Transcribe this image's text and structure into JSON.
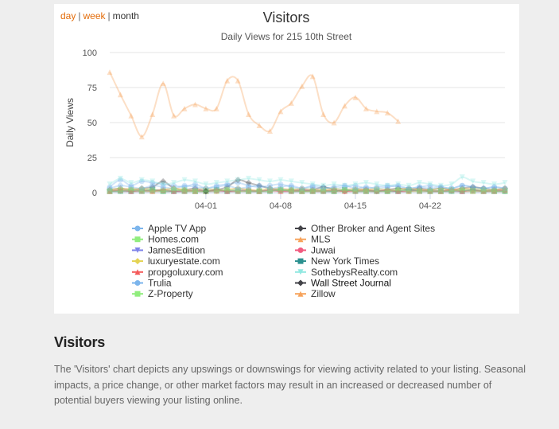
{
  "range_selector": {
    "day": "day",
    "week": "week",
    "month": "month",
    "separator": "|"
  },
  "section": {
    "title": "Visitors",
    "description": "The 'Visitors' chart depicts any upswings or downswings for viewing activity related to your listing. Seasonal impacts, a price change, or other market factors may result in an increased or decreased number of potential buyers viewing your listing online."
  },
  "colors": {
    "accent": "#e36c0a",
    "grid": "#e6e6e6",
    "zillow": "#f7a35c"
  },
  "chart_data": {
    "type": "line",
    "title": "Visitors",
    "subtitle": "Daily Views for 215 10th Street",
    "xlabel": "",
    "ylabel": "Daily Views",
    "ylim": [
      0,
      100
    ],
    "yticks": [
      0,
      25,
      50,
      75,
      100
    ],
    "xlim": [
      0,
      37
    ],
    "xticks": [
      {
        "x": 9,
        "label": "04-01"
      },
      {
        "x": 16,
        "label": "04-08"
      },
      {
        "x": 23,
        "label": "04-15"
      },
      {
        "x": 30,
        "label": "04-22"
      }
    ],
    "series": [
      {
        "name": "Apple TV App",
        "color": "#7cb5ec",
        "marker": "circle",
        "values": [
          4,
          9,
          5,
          8,
          7,
          6,
          5,
          4,
          6,
          3,
          5,
          6,
          7,
          5,
          4,
          5,
          6,
          4,
          3,
          5,
          4,
          3,
          4,
          5,
          3,
          4,
          5,
          4,
          3,
          4,
          5,
          4,
          3,
          5,
          4,
          3,
          4,
          3
        ]
      },
      {
        "name": "Other Broker and Agent Sites",
        "color": "#434348",
        "marker": "diamond",
        "values": [
          2,
          3,
          2,
          3,
          4,
          8,
          3,
          2,
          3,
          1,
          2,
          4,
          9,
          7,
          5,
          3,
          2,
          2,
          2,
          2,
          4,
          2,
          1,
          2,
          2,
          1,
          2,
          3,
          2,
          3,
          2,
          3,
          2,
          3,
          4,
          3,
          2,
          3
        ]
      },
      {
        "name": "Homes.com",
        "color": "#90ed7d",
        "marker": "square",
        "values": [
          1,
          2,
          1,
          2,
          2,
          1,
          1,
          2,
          1,
          1,
          2,
          1,
          2,
          1,
          1,
          2,
          1,
          2,
          1,
          1,
          2,
          1,
          1,
          2,
          1,
          2,
          1,
          1,
          1,
          2,
          1,
          1,
          2,
          1,
          1,
          2,
          1,
          1
        ]
      },
      {
        "name": "MLS",
        "color": "#f7a35c",
        "marker": "triangle",
        "values": [
          1,
          2,
          3,
          2,
          1,
          2,
          3,
          2,
          1,
          2,
          1,
          2,
          3,
          2,
          1,
          2,
          3,
          2,
          1,
          2,
          2,
          1,
          2,
          3,
          2,
          2,
          1,
          2,
          3,
          2,
          2,
          1,
          2,
          3,
          2,
          1,
          2,
          2
        ]
      },
      {
        "name": "JamesEdition",
        "color": "#8085e9",
        "marker": "triangle-down",
        "values": [
          1,
          1,
          2,
          1,
          1,
          2,
          1,
          1,
          2,
          1,
          1,
          1,
          2,
          1,
          1,
          2,
          1,
          1,
          1,
          2,
          1,
          1,
          2,
          1,
          1,
          1,
          2,
          1,
          1,
          2,
          1,
          1,
          1,
          2,
          1,
          1,
          2,
          1
        ]
      },
      {
        "name": "Juwai",
        "color": "#f15c80",
        "marker": "circle",
        "values": [
          1,
          1,
          1,
          2,
          1,
          1,
          1,
          1,
          2,
          1,
          1,
          1,
          1,
          2,
          1,
          1,
          1,
          1,
          2,
          1,
          1,
          1,
          1,
          1,
          2,
          1,
          1,
          1,
          1,
          2,
          1,
          1,
          1,
          1,
          2,
          1,
          1,
          1
        ]
      },
      {
        "name": "luxuryestate.com",
        "color": "#e4d354",
        "marker": "diamond",
        "values": [
          2,
          3,
          2,
          3,
          2,
          2,
          3,
          2,
          2,
          3,
          2,
          2,
          3,
          2,
          2,
          3,
          2,
          2,
          3,
          2,
          2,
          3,
          2,
          2,
          2,
          3,
          2,
          2,
          3,
          2,
          2,
          3,
          2,
          2,
          3,
          2,
          2,
          3
        ]
      },
      {
        "name": "New York Times",
        "color": "#2b908f",
        "marker": "square",
        "values": [
          1,
          1,
          1,
          1,
          2,
          1,
          1,
          1,
          1,
          1,
          2,
          1,
          1,
          1,
          1,
          1,
          2,
          1,
          1,
          1,
          1,
          1,
          2,
          1,
          1,
          1,
          1,
          1,
          2,
          1,
          1,
          1,
          1,
          1,
          2,
          1,
          1,
          1
        ]
      },
      {
        "name": "propgoluxury.com",
        "color": "#f45b5b",
        "marker": "triangle",
        "values": [
          1,
          2,
          1,
          1,
          1,
          2,
          1,
          1,
          1,
          1,
          2,
          1,
          1,
          1,
          1,
          2,
          1,
          1,
          1,
          1,
          1,
          2,
          1,
          1,
          1,
          1,
          2,
          1,
          1,
          1,
          1,
          1,
          2,
          1,
          1,
          1,
          1,
          2
        ]
      },
      {
        "name": "SothebysRealty.com",
        "color": "#91e8e1",
        "marker": "triangle-down",
        "values": [
          6,
          10,
          7,
          9,
          8,
          6,
          7,
          9,
          8,
          6,
          7,
          8,
          9,
          10,
          9,
          8,
          9,
          8,
          7,
          6,
          5,
          6,
          5,
          6,
          7,
          6,
          5,
          6,
          5,
          7,
          6,
          5,
          6,
          11,
          8,
          7,
          6,
          7
        ]
      },
      {
        "name": "Trulia",
        "color": "#7cb5ec",
        "marker": "circle",
        "values": [
          3,
          5,
          4,
          3,
          5,
          4,
          3,
          5,
          4,
          3,
          4,
          5,
          3,
          4,
          5,
          3,
          4,
          5,
          3,
          4,
          3,
          4,
          5,
          3,
          4,
          3,
          4,
          5,
          3,
          4,
          3,
          4,
          3,
          5,
          4,
          3,
          4,
          3
        ]
      },
      {
        "name": "Wall Street Journal",
        "color": "#434348",
        "marker": "diamond",
        "values": [
          null,
          null,
          null,
          null,
          null,
          null,
          null,
          null,
          null,
          1,
          null,
          null,
          null,
          null,
          null,
          null,
          null,
          null,
          null,
          null,
          null,
          null,
          null,
          null,
          null,
          null,
          null,
          null,
          null,
          null,
          null,
          null,
          null,
          null,
          null,
          null,
          null,
          null
        ]
      },
      {
        "name": "Z-Property",
        "color": "#90ed7d",
        "marker": "square",
        "values": [
          1,
          1,
          2,
          1,
          1,
          1,
          2,
          1,
          1,
          1,
          1,
          2,
          1,
          1,
          1,
          1,
          2,
          1,
          1,
          1,
          1,
          1,
          2,
          1,
          1,
          1,
          1,
          2,
          1,
          1,
          1,
          1,
          1,
          2,
          1,
          1,
          1,
          1
        ]
      },
      {
        "name": "Zillow",
        "color": "#f7a35c",
        "marker": "triangle",
        "values": [
          86,
          70,
          55,
          40,
          56,
          78,
          55,
          60,
          63,
          60,
          60,
          80,
          80,
          56,
          48,
          44,
          58,
          64,
          76,
          83,
          56,
          50,
          62,
          68,
          60,
          58,
          57,
          51,
          null,
          null,
          null,
          null,
          null,
          null,
          null,
          null,
          null,
          null
        ]
      }
    ],
    "legend_position": "bottom"
  }
}
